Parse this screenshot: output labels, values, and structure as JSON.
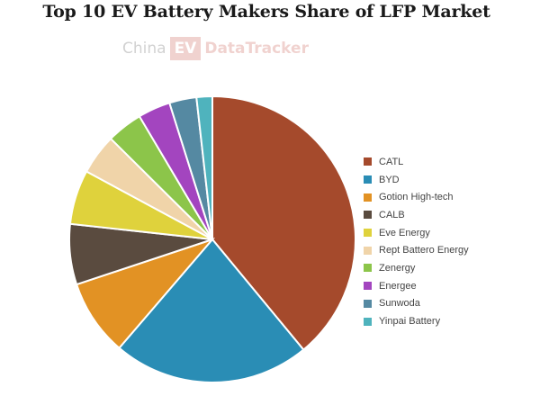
{
  "title": "Top 10 EV Battery Makers Share of LFP Market",
  "watermark": {
    "part1": "China",
    "part2": "EV",
    "part3": "DataTracker"
  },
  "chart_data": {
    "type": "pie",
    "title": "Top 10 EV Battery Makers Share of LFP Market",
    "legend_position": "right",
    "series": [
      {
        "name": "CATL",
        "value": 39.4,
        "color": "#a54a2c"
      },
      {
        "name": "BYD",
        "value": 22.5,
        "color": "#2a8db5"
      },
      {
        "name": "Gotion High-tech",
        "value": 8.7,
        "color": "#e29224"
      },
      {
        "name": "CALB",
        "value": 6.9,
        "color": "#5a4b3f"
      },
      {
        "name": "Eve Energy",
        "value": 6.2,
        "color": "#dfd23c"
      },
      {
        "name": "Rept Battero Energy",
        "value": 4.6,
        "color": "#f0d4a9"
      },
      {
        "name": "Zenergy",
        "value": 4.1,
        "color": "#8cc54a"
      },
      {
        "name": "Energee",
        "value": 3.7,
        "color": "#a345bf"
      },
      {
        "name": "Sunwoda",
        "value": 3.1,
        "color": "#5589a2"
      },
      {
        "name": "Yinpai Battery",
        "value": 1.8,
        "color": "#4fb3bd"
      }
    ]
  }
}
